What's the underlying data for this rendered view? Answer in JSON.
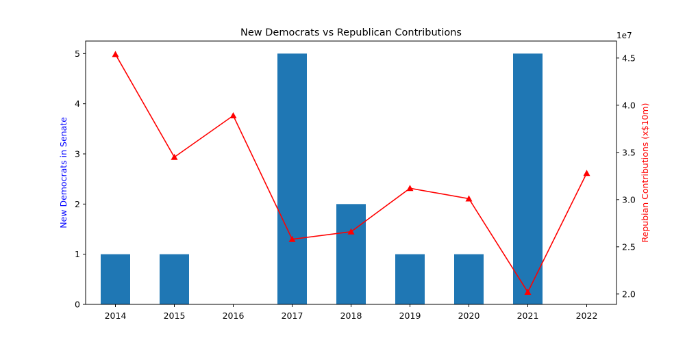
{
  "chart_data": {
    "type": "bar+line",
    "title": "New Democrats vs Republican Contributions",
    "categories": [
      "2014",
      "2015",
      "2016",
      "2017",
      "2018",
      "2019",
      "2020",
      "2021",
      "2022"
    ],
    "left_axis": {
      "label": "New Democrats in Senate",
      "label_color": "#0000ff",
      "ylim": [
        0,
        5.25
      ],
      "ticks": [
        0,
        1,
        2,
        3,
        4,
        5
      ],
      "tick_labels": [
        "0",
        "1",
        "2",
        "3",
        "4",
        "5"
      ]
    },
    "right_axis": {
      "label": "Repubian Contributions (x$10m)",
      "label_color": "#ff0000",
      "offset_text": "1e7",
      "ylim": [
        18900000,
        46800000
      ],
      "ticks": [
        20000000,
        25000000,
        30000000,
        35000000,
        40000000,
        45000000
      ],
      "tick_labels": [
        "2.0",
        "2.5",
        "3.0",
        "3.5",
        "4.0",
        "4.5"
      ]
    },
    "series": [
      {
        "kind": "bar",
        "axis": "left",
        "color": "#1f77b4",
        "values": [
          1,
          1,
          0,
          5,
          2,
          1,
          1,
          5,
          0
        ]
      },
      {
        "kind": "line",
        "axis": "right",
        "color": "#ff0000",
        "marker": "triangle",
        "values": [
          45400000,
          34500000,
          38900000,
          25800000,
          26600000,
          31200000,
          30100000,
          20200000,
          32800000
        ]
      }
    ],
    "grid": false,
    "legend": "none"
  }
}
